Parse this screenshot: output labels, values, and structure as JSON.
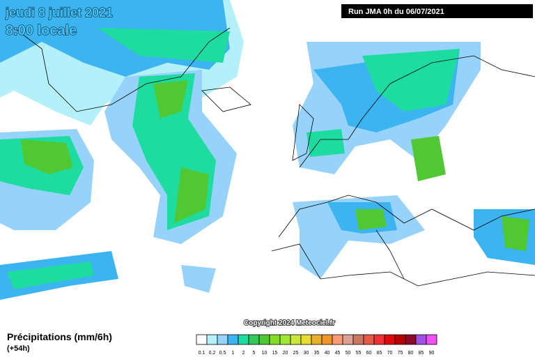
{
  "header": {
    "date": "jeudi 8 juillet 2021",
    "time": "8:00 locale",
    "run": "Run JMA 0h du 06/07/2021"
  },
  "footer": {
    "copyright": "Copyright 2024 Meteociel.fr",
    "legend_title": "Précipitations (mm/6h)",
    "lead": "(+54h)"
  },
  "legend": {
    "items": [
      {
        "label": "0.1",
        "color": "#ffffff"
      },
      {
        "label": "0.2",
        "color": "#b4f0fa"
      },
      {
        "label": "0.5",
        "color": "#96d2fa"
      },
      {
        "label": "1",
        "color": "#3cb4f0"
      },
      {
        "label": "2",
        "color": "#1edca0"
      },
      {
        "label": "5",
        "color": "#32c85a"
      },
      {
        "label": "10",
        "color": "#50c832"
      },
      {
        "label": "15",
        "color": "#82dc28"
      },
      {
        "label": "20",
        "color": "#a0e632"
      },
      {
        "label": "25",
        "color": "#c8e63c"
      },
      {
        "label": "30",
        "color": "#e6dc32"
      },
      {
        "label": "35",
        "color": "#e6af2d"
      },
      {
        "label": "40",
        "color": "#f09628"
      },
      {
        "label": "45",
        "color": "#fa9b78"
      },
      {
        "label": "50",
        "color": "#dca096"
      },
      {
        "label": "55",
        "color": "#c87864"
      },
      {
        "label": "60",
        "color": "#e65a46"
      },
      {
        "label": "65",
        "color": "#f03232"
      },
      {
        "label": "70",
        "color": "#dc0a0a"
      },
      {
        "label": "75",
        "color": "#b40000"
      },
      {
        "label": "80",
        "color": "#8c0a28"
      },
      {
        "label": "85",
        "color": "#a050e6"
      },
      {
        "label": "90",
        "color": "#f050f0"
      }
    ]
  }
}
